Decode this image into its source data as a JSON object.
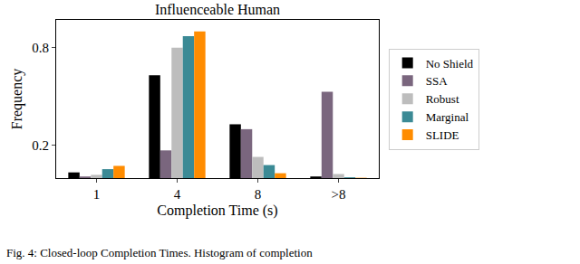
{
  "chart_data": {
    "type": "bar",
    "title": "Influenceable Human",
    "x_label": "Completion Time (s)",
    "y_label": "Frequency",
    "categories": [
      "1",
      "4",
      "8",
      ">8"
    ],
    "series": [
      {
        "name": "No Shield",
        "color": "#000000",
        "values": [
          0.035,
          0.63,
          0.33,
          0.01
        ]
      },
      {
        "name": "SSA",
        "color": "#7a667e",
        "values": [
          0.01,
          0.17,
          0.3,
          0.53
        ]
      },
      {
        "name": "Robust",
        "color": "#bdbdbd",
        "values": [
          0.02,
          0.8,
          0.13,
          0.025
        ]
      },
      {
        "name": "Marginal",
        "color": "#3b8a95",
        "values": [
          0.055,
          0.87,
          0.08,
          0.005
        ]
      },
      {
        "name": "SLIDE",
        "color": "#ff8c00",
        "values": [
          0.075,
          0.9,
          0.03,
          0.002
        ]
      }
    ],
    "ylim": [
      0,
      0.97
    ],
    "yticks": [
      0.2,
      0.8
    ],
    "grid": false,
    "legend": "right",
    "annotations": [
      "Fig. 4: Closed-loop Completion Times. Histogram of completion"
    ]
  }
}
